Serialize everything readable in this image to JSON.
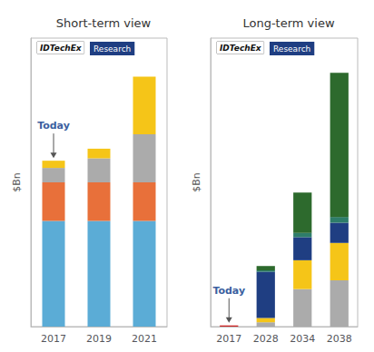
{
  "chart_data": [
    {
      "type": "bar",
      "title": "Short-term view",
      "ylabel": "$Bn",
      "stacked": true,
      "grid": false,
      "tick_labels": "x",
      "categories": [
        "2017",
        "2019",
        "2021"
      ],
      "series": [
        {
          "color": "#5BACD6",
          "values": [
            22,
            22,
            22
          ]
        },
        {
          "color": "#E8703A",
          "values": [
            8,
            8,
            8
          ]
        },
        {
          "color": "#ABABAB",
          "values": [
            3,
            5,
            10
          ]
        },
        {
          "color": "#F5C518",
          "values": [
            1.5,
            2,
            12
          ]
        }
      ],
      "ylim": [
        0,
        60
      ],
      "annotations": [
        {
          "text": "Today",
          "x": "2017",
          "color": "#3B5FA0"
        },
        {
          "text": "IDTechEx"
        },
        {
          "text": "Research",
          "color": "#1F3E82"
        }
      ]
    },
    {
      "type": "bar",
      "title": "Long-term view",
      "ylabel": "$Bn",
      "stacked": true,
      "grid": false,
      "tick_labels": "x",
      "categories": [
        "2017",
        "2028",
        "2034",
        "2038"
      ],
      "series": [
        {
          "color": "#CC2222",
          "values": [
            0.4,
            0,
            0,
            0
          ]
        },
        {
          "color": "#ABABAB",
          "values": [
            0,
            1.5,
            13,
            16
          ]
        },
        {
          "color": "#F5C518",
          "values": [
            0,
            1.5,
            10,
            13
          ]
        },
        {
          "color": "#1F3E82",
          "values": [
            0,
            16,
            8,
            7
          ]
        },
        {
          "color": "#2E7D6A",
          "values": [
            0,
            0.5,
            1.5,
            2
          ]
        },
        {
          "color": "#2D6A2D",
          "values": [
            0,
            1.5,
            14,
            50
          ]
        }
      ],
      "ylim": [
        0,
        100
      ],
      "annotations": [
        {
          "text": "Today",
          "x": "2017",
          "color": "#3B5FA0"
        },
        {
          "text": "IDTechEx"
        },
        {
          "text": "Research",
          "color": "#1F3E82"
        }
      ]
    }
  ]
}
